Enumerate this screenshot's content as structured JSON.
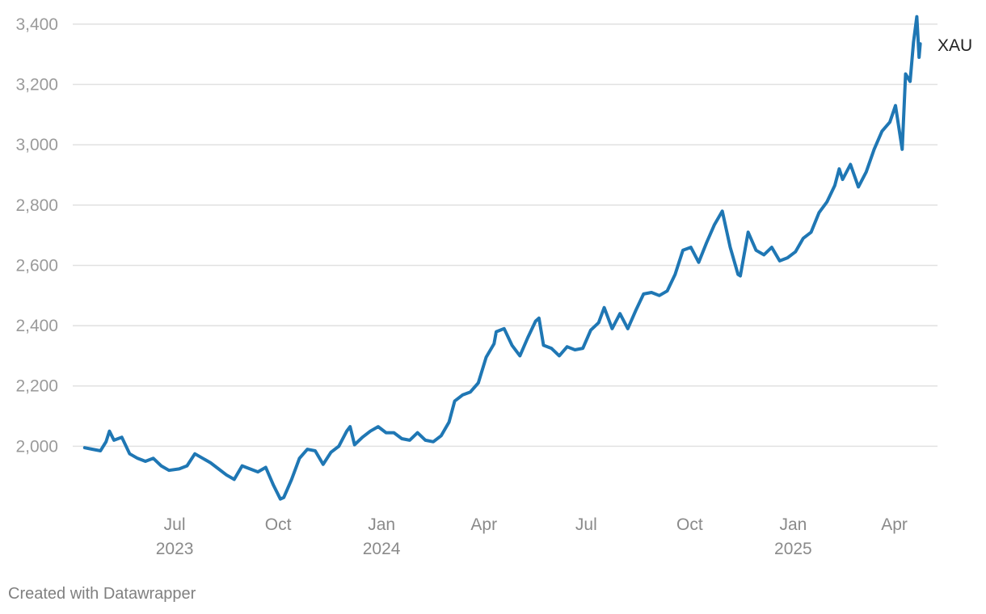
{
  "colors": {
    "line": "#1f77b4",
    "grid": "#e1e1e1",
    "tick": "#9a9a9a"
  },
  "footer": {
    "credit": "Created with Datawrapper"
  },
  "chart_data": {
    "type": "line",
    "title": "",
    "xlabel": "",
    "ylabel": "",
    "ylim": [
      1800,
      3440
    ],
    "grid": true,
    "x_axis_type": "date",
    "xlim": [
      "2023-04-10",
      "2025-04-25"
    ],
    "yticks": [
      {
        "value": 2000,
        "label": "2,000"
      },
      {
        "value": 2200,
        "label": "2,200"
      },
      {
        "value": 2400,
        "label": "2,400"
      },
      {
        "value": 2600,
        "label": "2,600"
      },
      {
        "value": 2800,
        "label": "2,800"
      },
      {
        "value": 3000,
        "label": "3,000"
      },
      {
        "value": 3200,
        "label": "3,200"
      },
      {
        "value": 3400,
        "label": "3,400"
      }
    ],
    "xticks": [
      {
        "date": "2023-07-01",
        "label": "Jul",
        "year": "2023"
      },
      {
        "date": "2023-10-01",
        "label": "Oct",
        "year": ""
      },
      {
        "date": "2024-01-01",
        "label": "Jan",
        "year": "2024"
      },
      {
        "date": "2024-04-01",
        "label": "Apr",
        "year": ""
      },
      {
        "date": "2024-07-01",
        "label": "Jul",
        "year": ""
      },
      {
        "date": "2024-10-01",
        "label": "Oct",
        "year": ""
      },
      {
        "date": "2025-01-01",
        "label": "Jan",
        "year": "2025"
      },
      {
        "date": "2025-04-01",
        "label": "Apr",
        "year": ""
      }
    ],
    "series": [
      {
        "name": "XAU",
        "points": [
          [
            "2023-04-12",
            1995
          ],
          [
            "2023-04-19",
            1990
          ],
          [
            "2023-04-26",
            1985
          ],
          [
            "2023-05-01",
            2015
          ],
          [
            "2023-05-04",
            2050
          ],
          [
            "2023-05-08",
            2020
          ],
          [
            "2023-05-15",
            2030
          ],
          [
            "2023-05-22",
            1975
          ],
          [
            "2023-05-29",
            1960
          ],
          [
            "2023-06-05",
            1950
          ],
          [
            "2023-06-12",
            1960
          ],
          [
            "2023-06-19",
            1935
          ],
          [
            "2023-06-26",
            1920
          ],
          [
            "2023-07-05",
            1925
          ],
          [
            "2023-07-12",
            1935
          ],
          [
            "2023-07-19",
            1975
          ],
          [
            "2023-07-26",
            1960
          ],
          [
            "2023-08-02",
            1945
          ],
          [
            "2023-08-09",
            1925
          ],
          [
            "2023-08-16",
            1905
          ],
          [
            "2023-08-23",
            1890
          ],
          [
            "2023-08-30",
            1935
          ],
          [
            "2023-09-06",
            1925
          ],
          [
            "2023-09-13",
            1915
          ],
          [
            "2023-09-20",
            1930
          ],
          [
            "2023-09-27",
            1870
          ],
          [
            "2023-10-03",
            1825
          ],
          [
            "2023-10-06",
            1830
          ],
          [
            "2023-10-13",
            1890
          ],
          [
            "2023-10-20",
            1960
          ],
          [
            "2023-10-27",
            1990
          ],
          [
            "2023-11-03",
            1985
          ],
          [
            "2023-11-10",
            1940
          ],
          [
            "2023-11-17",
            1980
          ],
          [
            "2023-11-24",
            2000
          ],
          [
            "2023-12-01",
            2050
          ],
          [
            "2023-12-04",
            2065
          ],
          [
            "2023-12-08",
            2005
          ],
          [
            "2023-12-15",
            2030
          ],
          [
            "2023-12-22",
            2050
          ],
          [
            "2023-12-29",
            2065
          ],
          [
            "2024-01-05",
            2045
          ],
          [
            "2024-01-12",
            2045
          ],
          [
            "2024-01-19",
            2025
          ],
          [
            "2024-01-26",
            2020
          ],
          [
            "2024-02-02",
            2045
          ],
          [
            "2024-02-09",
            2020
          ],
          [
            "2024-02-16",
            2015
          ],
          [
            "2024-02-23",
            2035
          ],
          [
            "2024-03-01",
            2080
          ],
          [
            "2024-03-06",
            2150
          ],
          [
            "2024-03-13",
            2170
          ],
          [
            "2024-03-20",
            2180
          ],
          [
            "2024-03-27",
            2210
          ],
          [
            "2024-04-03",
            2295
          ],
          [
            "2024-04-10",
            2340
          ],
          [
            "2024-04-12",
            2380
          ],
          [
            "2024-04-19",
            2390
          ],
          [
            "2024-04-26",
            2335
          ],
          [
            "2024-05-03",
            2300
          ],
          [
            "2024-05-10",
            2360
          ],
          [
            "2024-05-17",
            2415
          ],
          [
            "2024-05-20",
            2425
          ],
          [
            "2024-05-24",
            2335
          ],
          [
            "2024-05-31",
            2325
          ],
          [
            "2024-06-07",
            2300
          ],
          [
            "2024-06-14",
            2330
          ],
          [
            "2024-06-21",
            2320
          ],
          [
            "2024-06-28",
            2325
          ],
          [
            "2024-07-05",
            2385
          ],
          [
            "2024-07-12",
            2410
          ],
          [
            "2024-07-17",
            2460
          ],
          [
            "2024-07-24",
            2390
          ],
          [
            "2024-07-31",
            2440
          ],
          [
            "2024-08-07",
            2390
          ],
          [
            "2024-08-14",
            2450
          ],
          [
            "2024-08-21",
            2505
          ],
          [
            "2024-08-28",
            2510
          ],
          [
            "2024-09-04",
            2500
          ],
          [
            "2024-09-11",
            2515
          ],
          [
            "2024-09-18",
            2570
          ],
          [
            "2024-09-25",
            2650
          ],
          [
            "2024-10-02",
            2660
          ],
          [
            "2024-10-09",
            2610
          ],
          [
            "2024-10-16",
            2675
          ],
          [
            "2024-10-23",
            2735
          ],
          [
            "2024-10-30",
            2780
          ],
          [
            "2024-11-06",
            2660
          ],
          [
            "2024-11-13",
            2570
          ],
          [
            "2024-11-15",
            2565
          ],
          [
            "2024-11-22",
            2710
          ],
          [
            "2024-11-29",
            2650
          ],
          [
            "2024-12-06",
            2635
          ],
          [
            "2024-12-13",
            2660
          ],
          [
            "2024-12-20",
            2615
          ],
          [
            "2024-12-27",
            2625
          ],
          [
            "2025-01-03",
            2645
          ],
          [
            "2025-01-10",
            2690
          ],
          [
            "2025-01-17",
            2710
          ],
          [
            "2025-01-24",
            2775
          ],
          [
            "2025-01-31",
            2810
          ],
          [
            "2025-02-07",
            2865
          ],
          [
            "2025-02-11",
            2920
          ],
          [
            "2025-02-14",
            2885
          ],
          [
            "2025-02-21",
            2935
          ],
          [
            "2025-02-28",
            2860
          ],
          [
            "2025-03-07",
            2910
          ],
          [
            "2025-03-14",
            2985
          ],
          [
            "2025-03-21",
            3045
          ],
          [
            "2025-03-28",
            3075
          ],
          [
            "2025-04-02",
            3130
          ],
          [
            "2025-04-08",
            2985
          ],
          [
            "2025-04-11",
            3235
          ],
          [
            "2025-04-15",
            3210
          ],
          [
            "2025-04-18",
            3340
          ],
          [
            "2025-04-21",
            3425
          ],
          [
            "2025-04-23",
            3290
          ],
          [
            "2025-04-24",
            3335
          ]
        ]
      }
    ]
  }
}
